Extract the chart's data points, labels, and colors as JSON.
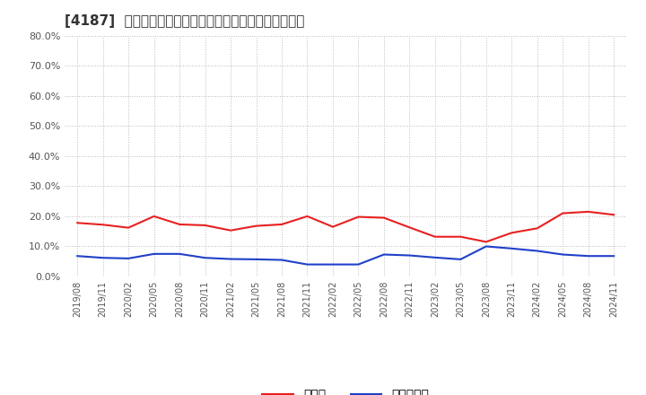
{
  "title": "[4187]  現預金、有利子負債の総資産に対する比率の推移",
  "x_labels": [
    "2019/08",
    "2019/11",
    "2020/02",
    "2020/05",
    "2020/08",
    "2020/11",
    "2021/02",
    "2021/05",
    "2021/08",
    "2021/11",
    "2022/02",
    "2022/05",
    "2022/08",
    "2022/11",
    "2023/02",
    "2023/05",
    "2023/08",
    "2023/11",
    "2024/02",
    "2024/05",
    "2024/08",
    "2024/11"
  ],
  "cash_ratio": [
    0.178,
    0.172,
    0.162,
    0.2,
    0.173,
    0.17,
    0.153,
    0.168,
    0.173,
    0.2,
    0.165,
    0.198,
    0.195,
    0.163,
    0.132,
    0.132,
    0.115,
    0.145,
    0.16,
    0.21,
    0.215,
    0.205
  ],
  "debt_ratio": [
    0.068,
    0.062,
    0.06,
    0.075,
    0.075,
    0.062,
    0.058,
    0.057,
    0.055,
    0.04,
    0.04,
    0.04,
    0.073,
    0.07,
    0.063,
    0.057,
    0.1,
    0.093,
    0.085,
    0.073,
    0.068,
    0.068
  ],
  "cash_color": "#e82020",
  "debt_color": "#2040c8",
  "ylim": [
    0.0,
    0.8
  ],
  "yticks": [
    0.0,
    0.1,
    0.2,
    0.3,
    0.4,
    0.5,
    0.6,
    0.7,
    0.8
  ],
  "legend_cash": "現預金",
  "legend_debt": "有利子負債",
  "background_color": "#ffffff",
  "grid_color": "#bbbbbb",
  "title_fontsize": 11,
  "tick_fontsize": 8,
  "legend_fontsize": 10
}
